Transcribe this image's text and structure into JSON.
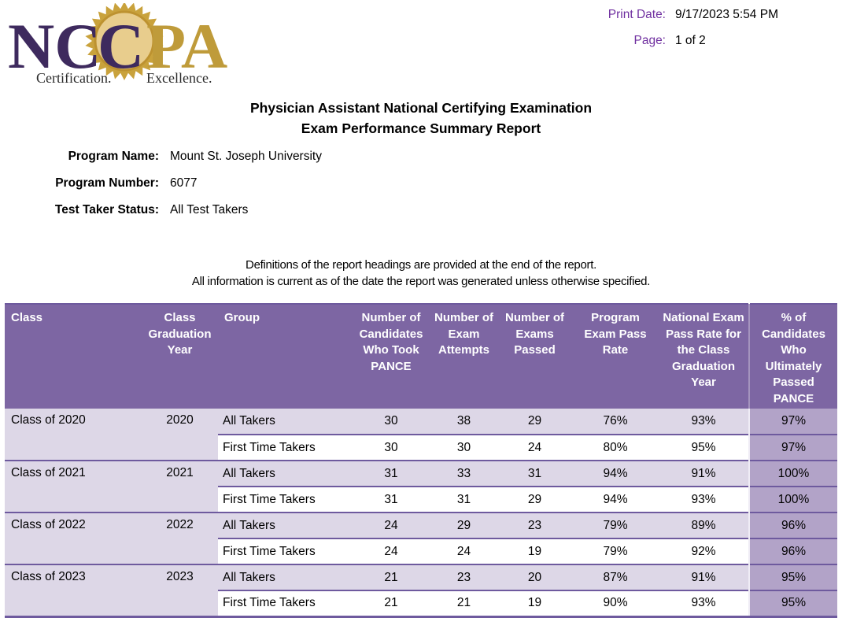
{
  "logo": {
    "nc": "NC",
    "c": "C",
    "pa": "PA",
    "tagline_left": "Certification.",
    "tagline_right": "Excellence.",
    "purple": "#3e2a5e",
    "gold": "#bf9b3a"
  },
  "meta": {
    "print_date_label": "Print Date:",
    "print_date_value": "9/17/2023 5:54 PM",
    "page_label": "Page:",
    "page_value": "1 of 2",
    "label_color": "#7030a0"
  },
  "title": {
    "line1": "Physician Assistant National Certifying Examination",
    "line2": "Exam Performance Summary Report"
  },
  "program_info": {
    "rows": [
      {
        "label": "Program Name:",
        "value": "Mount St. Joseph University"
      },
      {
        "label": "Program Number:",
        "value": "6077"
      },
      {
        "label": "Test Taker Status:",
        "value": "All Test Takers"
      }
    ]
  },
  "notes": {
    "line1": "Definitions of the report headings are provided at the end of the report.",
    "line2": "All information is current as of the date the report was generated unless otherwise specified."
  },
  "table": {
    "columns": [
      "Class",
      "Class Graduation Year",
      "Group",
      "Number of Candidates Who Took PANCE",
      "Number of Exam Attempts",
      "Number of Exams Passed",
      "Program Exam Pass Rate",
      "National Exam Pass Rate for the Class Graduation Year",
      "% of Candidates Who Ultimately Passed PANCE"
    ],
    "groups": [
      {
        "class": "Class of 2020",
        "year": "2020",
        "rows": [
          {
            "group": "All Takers",
            "candidates": "30",
            "attempts": "38",
            "passed": "29",
            "program_rate": "76%",
            "national_rate": "93%",
            "ultimate_rate": "97%"
          },
          {
            "group": "First Time Takers",
            "candidates": "30",
            "attempts": "30",
            "passed": "24",
            "program_rate": "80%",
            "national_rate": "95%",
            "ultimate_rate": "97%"
          }
        ]
      },
      {
        "class": "Class of 2021",
        "year": "2021",
        "rows": [
          {
            "group": "All Takers",
            "candidates": "31",
            "attempts": "33",
            "passed": "31",
            "program_rate": "94%",
            "national_rate": "91%",
            "ultimate_rate": "100%"
          },
          {
            "group": "First Time Takers",
            "candidates": "31",
            "attempts": "31",
            "passed": "29",
            "program_rate": "94%",
            "national_rate": "93%",
            "ultimate_rate": "100%"
          }
        ]
      },
      {
        "class": "Class of 2022",
        "year": "2022",
        "rows": [
          {
            "group": "All Takers",
            "candidates": "24",
            "attempts": "29",
            "passed": "23",
            "program_rate": "79%",
            "national_rate": "89%",
            "ultimate_rate": "96%"
          },
          {
            "group": "First Time Takers",
            "candidates": "24",
            "attempts": "24",
            "passed": "19",
            "program_rate": "79%",
            "national_rate": "92%",
            "ultimate_rate": "96%"
          }
        ]
      },
      {
        "class": "Class of 2023",
        "year": "2023",
        "rows": [
          {
            "group": "All Takers",
            "candidates": "21",
            "attempts": "23",
            "passed": "20",
            "program_rate": "87%",
            "national_rate": "91%",
            "ultimate_rate": "95%"
          },
          {
            "group": "First Time Takers",
            "candidates": "21",
            "attempts": "21",
            "passed": "19",
            "program_rate": "90%",
            "national_rate": "93%",
            "ultimate_rate": "95%"
          }
        ]
      }
    ],
    "colors": {
      "header_bg": "#7d66a3",
      "header_text": "#ffffff",
      "row_alt_bg": "#ddd7e7",
      "row_bg": "#ffffff",
      "last_col_bg": "#b2a3c8",
      "border": "#6e5a9e"
    }
  }
}
